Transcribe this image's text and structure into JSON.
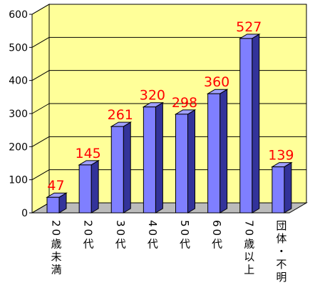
{
  "chart_data": {
    "type": "bar3d",
    "categories": [
      "20歳未満",
      "20代",
      "30代",
      "40代",
      "50代",
      "60代",
      "70歳以上",
      "団体・不明"
    ],
    "values": [
      47,
      145,
      261,
      320,
      298,
      360,
      527,
      139
    ],
    "color": "#7f7fff",
    "label_color": "#ff0000",
    "wall_color": "#ffff99",
    "ylim": [
      0,
      600
    ],
    "yticks": [
      0,
      100,
      200,
      300,
      400,
      500,
      600
    ],
    "grid": true
  }
}
